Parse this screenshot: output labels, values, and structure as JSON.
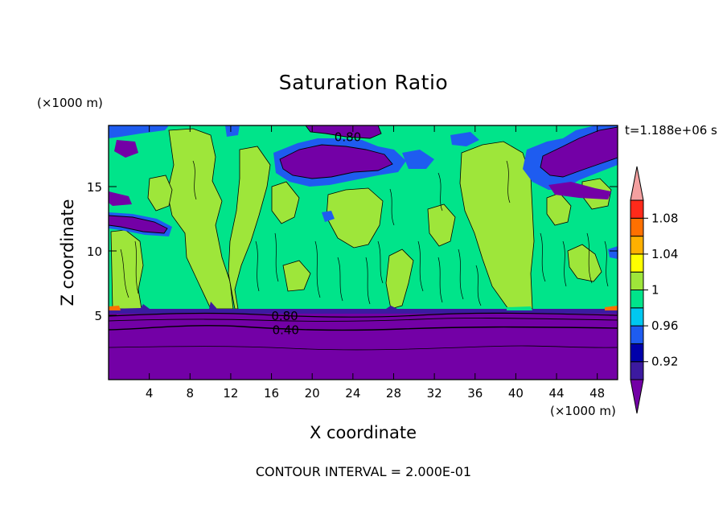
{
  "chart_data": {
    "type": "heatmap",
    "title": "Saturation Ratio",
    "xlabel": "X coordinate",
    "ylabel": "Z coordinate",
    "x_unit": "(×1000 m)",
    "y_unit": "(×1000 m)",
    "time_label": "t=1.188e+06 s",
    "footer": "CONTOUR INTERVAL = 2.000E-01",
    "xlim": [
      0,
      50
    ],
    "ylim": [
      0,
      19.75
    ],
    "x_ticks": [
      4,
      8,
      12,
      16,
      20,
      24,
      28,
      32,
      36,
      40,
      44,
      48
    ],
    "x_tick_labels": [
      "4",
      "8",
      "12",
      "16",
      "20",
      "24",
      "28",
      "32",
      "36",
      "40",
      "44",
      "48"
    ],
    "y_ticks": [
      5,
      10,
      15
    ],
    "y_tick_labels": [
      "5",
      "10",
      "15"
    ],
    "contour_labels": [
      {
        "text": "0.80",
        "x": 23.5,
        "y": 18.9
      },
      {
        "text": "0.80",
        "x": 17.3,
        "y": 5.0
      },
      {
        "text": "0.40",
        "x": 17.4,
        "y": 3.9
      }
    ],
    "colorbar": {
      "colors": [
        "#7300a6",
        "#3c1aa0",
        "#0000aa",
        "#1e5cf0",
        "#00c8f0",
        "#00e48a",
        "#9ee63a",
        "#ffff00",
        "#ffb000",
        "#ff7000",
        "#ff2a1a",
        "#f4a0a0"
      ],
      "labels": [
        "0.92",
        "0.96",
        "1",
        "1.04",
        "1.08"
      ]
    }
  }
}
